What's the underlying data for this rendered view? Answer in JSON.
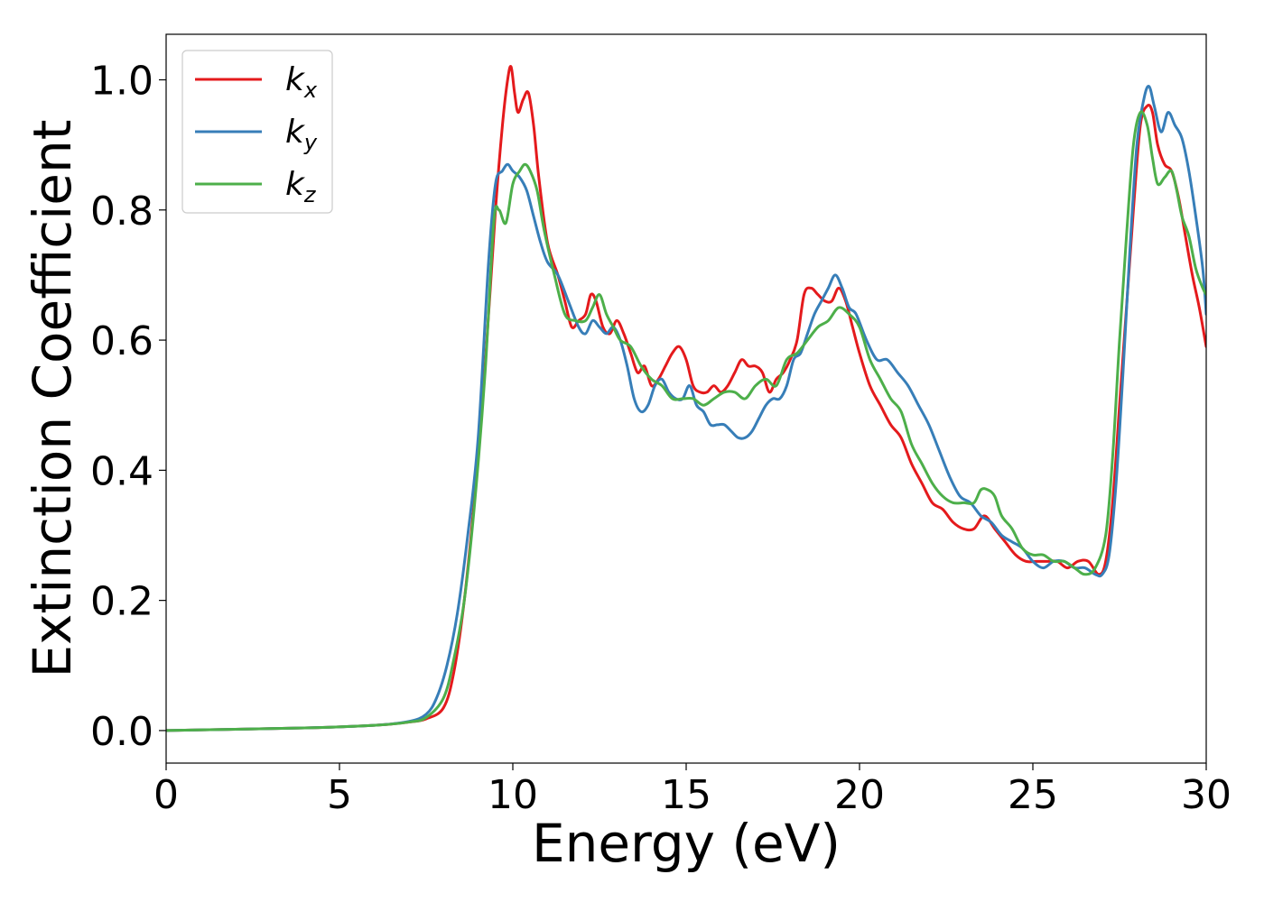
{
  "chart_data": {
    "type": "line",
    "xlabel": "Energy (eV)",
    "ylabel": "Extinction Coefficient",
    "xlim": [
      0,
      30
    ],
    "ylim": [
      -0.05,
      1.07
    ],
    "xticks": [
      0,
      5,
      10,
      15,
      20,
      25,
      30
    ],
    "xtick_labels": [
      "0",
      "5",
      "10",
      "15",
      "20",
      "25",
      "30"
    ],
    "yticks": [
      0.0,
      0.2,
      0.4,
      0.6,
      0.8,
      1.0
    ],
    "ytick_labels": [
      "0.0",
      "0.2",
      "0.4",
      "0.6",
      "0.8",
      "1.0"
    ],
    "grid": false,
    "legend_position": "top-left",
    "series": [
      {
        "name": "k",
        "subscript": "x",
        "color": "#e41a1c",
        "x": [
          0,
          2,
          4,
          6,
          7,
          7.5,
          8,
          8.3,
          8.6,
          8.9,
          9.2,
          9.5,
          9.7,
          9.85,
          9.95,
          10.05,
          10.15,
          10.3,
          10.45,
          10.6,
          10.75,
          11,
          11.3,
          11.5,
          11.7,
          11.9,
          12.1,
          12.25,
          12.4,
          12.6,
          12.8,
          13,
          13.2,
          13.4,
          13.6,
          13.8,
          14,
          14.2,
          14.4,
          14.6,
          14.8,
          15,
          15.2,
          15.4,
          15.6,
          15.8,
          16,
          16.2,
          16.4,
          16.6,
          16.8,
          17,
          17.2,
          17.4,
          17.6,
          17.8,
          18,
          18.2,
          18.4,
          18.6,
          18.8,
          19,
          19.2,
          19.4,
          19.6,
          19.8,
          20,
          20.3,
          20.6,
          20.9,
          21.2,
          21.5,
          21.8,
          22.1,
          22.4,
          22.7,
          23,
          23.3,
          23.6,
          23.9,
          24.2,
          24.5,
          24.8,
          25.1,
          25.4,
          25.7,
          26,
          26.3,
          26.6,
          26.9,
          27.1,
          27.3,
          27.5,
          27.7,
          27.9,
          28.1,
          28.3,
          28.45,
          28.6,
          28.8,
          29,
          29.2,
          29.4,
          29.6,
          29.8,
          30
        ],
        "values": [
          0.0,
          0.002,
          0.004,
          0.008,
          0.013,
          0.018,
          0.035,
          0.09,
          0.2,
          0.36,
          0.56,
          0.8,
          0.93,
          1.0,
          1.02,
          0.98,
          0.95,
          0.97,
          0.98,
          0.93,
          0.85,
          0.75,
          0.7,
          0.66,
          0.62,
          0.63,
          0.64,
          0.67,
          0.66,
          0.62,
          0.61,
          0.63,
          0.61,
          0.58,
          0.55,
          0.56,
          0.53,
          0.54,
          0.56,
          0.58,
          0.59,
          0.57,
          0.53,
          0.52,
          0.52,
          0.53,
          0.52,
          0.53,
          0.55,
          0.57,
          0.56,
          0.56,
          0.55,
          0.52,
          0.54,
          0.55,
          0.57,
          0.6,
          0.67,
          0.68,
          0.67,
          0.66,
          0.66,
          0.68,
          0.66,
          0.62,
          0.58,
          0.53,
          0.5,
          0.47,
          0.45,
          0.41,
          0.38,
          0.35,
          0.34,
          0.32,
          0.31,
          0.31,
          0.33,
          0.31,
          0.29,
          0.27,
          0.26,
          0.26,
          0.26,
          0.26,
          0.25,
          0.26,
          0.26,
          0.24,
          0.26,
          0.35,
          0.5,
          0.65,
          0.8,
          0.93,
          0.96,
          0.95,
          0.9,
          0.87,
          0.86,
          0.82,
          0.76,
          0.7,
          0.65,
          0.59
        ]
      },
      {
        "name": "k",
        "subscript": "y",
        "color": "#377eb8",
        "x": [
          0,
          2,
          4,
          6,
          7,
          7.5,
          7.8,
          8.1,
          8.4,
          8.7,
          9,
          9.3,
          9.5,
          9.7,
          9.85,
          10,
          10.2,
          10.4,
          10.6,
          10.8,
          11,
          11.3,
          11.6,
          11.9,
          12.1,
          12.3,
          12.5,
          12.7,
          12.9,
          13.1,
          13.3,
          13.5,
          13.7,
          13.9,
          14.1,
          14.3,
          14.5,
          14.7,
          14.9,
          15.1,
          15.3,
          15.5,
          15.7,
          15.9,
          16.1,
          16.3,
          16.5,
          16.7,
          16.9,
          17.1,
          17.3,
          17.5,
          17.7,
          17.9,
          18.1,
          18.3,
          18.5,
          18.7,
          18.9,
          19.1,
          19.3,
          19.5,
          19.7,
          19.9,
          20.2,
          20.5,
          20.8,
          21.1,
          21.4,
          21.7,
          22,
          22.3,
          22.6,
          22.9,
          23.2,
          23.5,
          23.8,
          24.1,
          24.4,
          24.7,
          25,
          25.3,
          25.6,
          25.9,
          26.2,
          26.5,
          26.8,
          27,
          27.2,
          27.4,
          27.6,
          27.8,
          28,
          28.2,
          28.35,
          28.5,
          28.7,
          28.9,
          29.1,
          29.3,
          29.5,
          29.7,
          29.9,
          30
        ],
        "values": [
          0.0,
          0.002,
          0.004,
          0.008,
          0.014,
          0.025,
          0.05,
          0.1,
          0.18,
          0.3,
          0.45,
          0.72,
          0.84,
          0.86,
          0.87,
          0.86,
          0.85,
          0.83,
          0.79,
          0.75,
          0.72,
          0.7,
          0.66,
          0.62,
          0.61,
          0.63,
          0.62,
          0.61,
          0.62,
          0.6,
          0.56,
          0.51,
          0.49,
          0.5,
          0.53,
          0.54,
          0.52,
          0.51,
          0.51,
          0.53,
          0.5,
          0.49,
          0.47,
          0.47,
          0.47,
          0.46,
          0.45,
          0.45,
          0.46,
          0.48,
          0.5,
          0.51,
          0.51,
          0.53,
          0.57,
          0.58,
          0.61,
          0.64,
          0.66,
          0.68,
          0.7,
          0.68,
          0.65,
          0.64,
          0.6,
          0.57,
          0.57,
          0.55,
          0.53,
          0.5,
          0.47,
          0.43,
          0.39,
          0.36,
          0.35,
          0.33,
          0.32,
          0.3,
          0.29,
          0.28,
          0.26,
          0.25,
          0.26,
          0.26,
          0.25,
          0.25,
          0.24,
          0.24,
          0.27,
          0.38,
          0.55,
          0.74,
          0.9,
          0.97,
          0.99,
          0.96,
          0.92,
          0.95,
          0.93,
          0.91,
          0.86,
          0.79,
          0.71,
          0.64
        ]
      },
      {
        "name": "k",
        "subscript": "z",
        "color": "#4daf4a",
        "x": [
          0,
          2,
          4,
          6,
          7,
          7.5,
          8,
          8.3,
          8.6,
          8.9,
          9.2,
          9.45,
          9.6,
          9.8,
          10,
          10.2,
          10.35,
          10.5,
          10.7,
          10.9,
          11.2,
          11.5,
          11.8,
          12.1,
          12.3,
          12.5,
          12.7,
          12.9,
          13.1,
          13.4,
          13.7,
          14,
          14.3,
          14.6,
          14.9,
          15.2,
          15.5,
          15.8,
          16.1,
          16.4,
          16.7,
          17,
          17.3,
          17.6,
          17.9,
          18.2,
          18.5,
          18.8,
          19.1,
          19.4,
          19.7,
          20,
          20.3,
          20.6,
          20.9,
          21.2,
          21.5,
          21.8,
          22.1,
          22.4,
          22.7,
          23,
          23.3,
          23.5,
          23.7,
          23.9,
          24.1,
          24.4,
          24.7,
          25,
          25.3,
          25.6,
          25.9,
          26.2,
          26.5,
          26.8,
          27.1,
          27.3,
          27.5,
          27.7,
          27.9,
          28.1,
          28.3,
          28.45,
          28.6,
          28.8,
          29,
          29.15,
          29.3,
          29.5,
          29.7,
          29.9,
          30
        ],
        "values": [
          0.0,
          0.002,
          0.004,
          0.008,
          0.013,
          0.02,
          0.05,
          0.11,
          0.2,
          0.35,
          0.55,
          0.78,
          0.8,
          0.78,
          0.84,
          0.86,
          0.87,
          0.86,
          0.83,
          0.77,
          0.7,
          0.64,
          0.63,
          0.63,
          0.65,
          0.67,
          0.64,
          0.62,
          0.6,
          0.59,
          0.56,
          0.54,
          0.53,
          0.51,
          0.51,
          0.51,
          0.5,
          0.51,
          0.52,
          0.52,
          0.51,
          0.53,
          0.54,
          0.53,
          0.57,
          0.58,
          0.6,
          0.62,
          0.63,
          0.65,
          0.64,
          0.62,
          0.57,
          0.54,
          0.51,
          0.49,
          0.44,
          0.41,
          0.38,
          0.36,
          0.35,
          0.35,
          0.35,
          0.37,
          0.37,
          0.36,
          0.33,
          0.31,
          0.28,
          0.27,
          0.27,
          0.26,
          0.26,
          0.25,
          0.24,
          0.25,
          0.3,
          0.42,
          0.6,
          0.76,
          0.9,
          0.95,
          0.93,
          0.88,
          0.84,
          0.85,
          0.86,
          0.83,
          0.79,
          0.76,
          0.71,
          0.68,
          0.67
        ]
      }
    ]
  }
}
